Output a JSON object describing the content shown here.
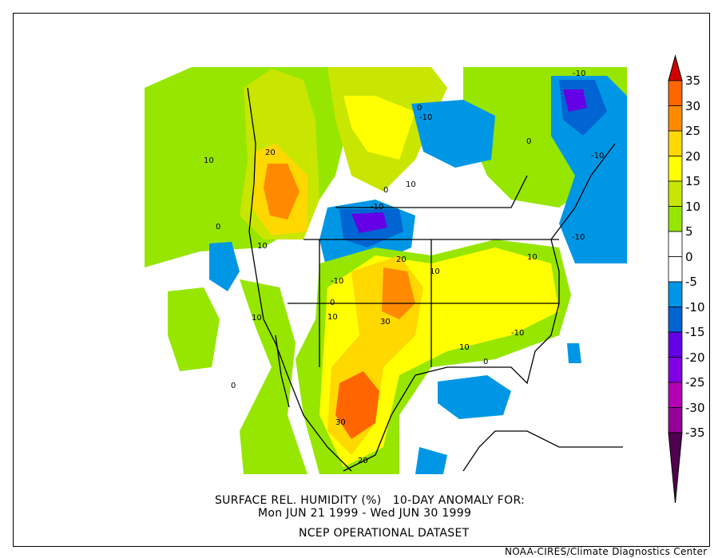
{
  "title_line1": "SURFACE REL. HUMIDITY (%)   10-DAY ANOMALY FOR:",
  "title_line2": "Mon JUN 21 1999 - Wed JUN 30 1999",
  "dataset": "NCEP OPERATIONAL DATASET",
  "credit": "NOAA-CIRES/Climate Diagnostics Center",
  "colorbar": {
    "labels": [
      "35",
      "30",
      "25",
      "20",
      "15",
      "10",
      "5",
      "0",
      "-5",
      "-10",
      "-15",
      "-20",
      "-25",
      "-30",
      "-35"
    ],
    "colors": [
      "#ff6600",
      "#ff8a00",
      "#ffd800",
      "#ffff00",
      "#c8e600",
      "#96e600",
      "#ffffff",
      "#ffffff",
      "#0096e6",
      "#0064d2",
      "#6400e6",
      "#8200e6",
      "#b400b4",
      "#960096"
    ],
    "max_arrow_color": "#d20000",
    "min_arrow_color": "#500050"
  },
  "contour_labels": [
    "10",
    "20",
    "0",
    "-10",
    "0",
    "10",
    "-10",
    "0",
    "-10",
    "-10",
    "-10",
    "0",
    "10",
    "20",
    "10",
    "-10",
    "10",
    "0",
    "10",
    "30",
    "0",
    "10",
    "30",
    "20",
    "10",
    "0",
    "-10"
  ]
}
